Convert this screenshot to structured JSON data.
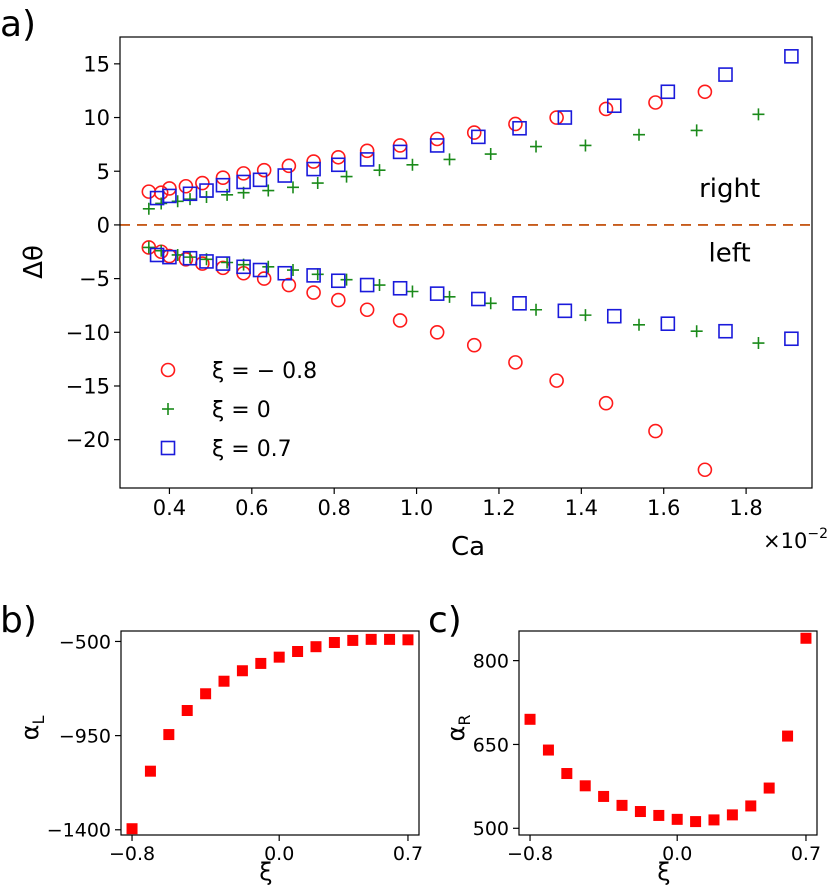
{
  "chart_data": [
    {
      "panel_label": "a)",
      "type": "scatter",
      "title": "",
      "xlabel": "Ca",
      "ylabel": "Δθ",
      "x_multiplier": "×10−2",
      "xlim": [
        0.28,
        1.96
      ],
      "ylim": [
        -24.5,
        17.5
      ],
      "xticks": [
        0.4,
        0.6,
        0.8,
        1.0,
        1.2,
        1.4,
        1.6,
        1.8
      ],
      "xtick_labels": [
        "0.4",
        "0.6",
        "0.8",
        "1.0",
        "1.2",
        "1.4",
        "1.6",
        "1.8"
      ],
      "yticks": [
        15,
        10,
        5,
        0,
        -5,
        -10,
        -15,
        -20
      ],
      "ytick_labels": [
        "15",
        "10",
        "5",
        "0",
        "−5",
        "−10",
        "−15",
        "−20"
      ],
      "annotations": [
        {
          "text": "right",
          "x": 1.76,
          "y": 2.6
        },
        {
          "text": "left",
          "x": 1.76,
          "y": -3.4
        }
      ],
      "reference_line": {
        "y": 0,
        "style": "dashed",
        "color": "#c65b1b"
      },
      "legend_position": "lower-left",
      "series": [
        {
          "name": "ξ = − 0.8",
          "marker": "circle",
          "color": "#ff1a1a",
          "right": {
            "x": [
              0.35,
              0.38,
              0.4,
              0.44,
              0.48,
              0.53,
              0.58,
              0.63,
              0.69,
              0.75,
              0.81,
              0.88,
              0.96,
              1.05,
              1.14,
              1.24,
              1.34,
              1.46,
              1.58,
              1.7
            ],
            "y": [
              3.1,
              3.0,
              3.4,
              3.6,
              3.9,
              4.4,
              4.8,
              5.1,
              5.5,
              5.9,
              6.3,
              6.9,
              7.4,
              8.0,
              8.6,
              9.4,
              10.0,
              10.8,
              11.4,
              12.4
            ]
          },
          "left": {
            "x": [
              0.35,
              0.38,
              0.4,
              0.44,
              0.48,
              0.53,
              0.58,
              0.63,
              0.69,
              0.75,
              0.81,
              0.88,
              0.96,
              1.05,
              1.14,
              1.24,
              1.34,
              1.46,
              1.58,
              1.7
            ],
            "y": [
              -2.1,
              -2.5,
              -2.9,
              -3.2,
              -3.6,
              -4.0,
              -4.5,
              -5.0,
              -5.6,
              -6.3,
              -7.0,
              -7.9,
              -8.9,
              -10.0,
              -11.2,
              -12.8,
              -14.5,
              -16.6,
              -19.2,
              -22.8
            ]
          }
        },
        {
          "name": "ξ = 0",
          "marker": "plus",
          "color": "#1a8a1a",
          "right": {
            "x": [
              0.35,
              0.38,
              0.42,
              0.45,
              0.49,
              0.54,
              0.58,
              0.64,
              0.7,
              0.76,
              0.83,
              0.91,
              0.99,
              1.08,
              1.18,
              1.29,
              1.41,
              1.54,
              1.68,
              1.83
            ],
            "y": [
              1.5,
              2.0,
              2.2,
              2.4,
              2.6,
              2.8,
              3.0,
              3.2,
              3.5,
              3.9,
              4.5,
              5.1,
              5.6,
              6.1,
              6.6,
              7.3,
              7.4,
              8.4,
              8.8,
              10.3
            ]
          },
          "left": {
            "x": [
              0.35,
              0.38,
              0.42,
              0.45,
              0.49,
              0.54,
              0.58,
              0.64,
              0.7,
              0.76,
              0.83,
              0.91,
              0.99,
              1.08,
              1.18,
              1.29,
              1.41,
              1.54,
              1.68,
              1.83
            ],
            "y": [
              -2.1,
              -2.4,
              -2.8,
              -3.0,
              -3.2,
              -3.5,
              -3.7,
              -3.9,
              -4.2,
              -4.6,
              -5.1,
              -5.6,
              -6.2,
              -6.7,
              -7.3,
              -7.9,
              -8.4,
              -9.3,
              -9.9,
              -11.0
            ]
          }
        },
        {
          "name": "ξ = 0.7",
          "marker": "square",
          "color": "#1a1adb",
          "right": {
            "x": [
              0.37,
              0.4,
              0.45,
              0.49,
              0.53,
              0.58,
              0.62,
              0.68,
              0.75,
              0.81,
              0.88,
              0.96,
              1.05,
              1.15,
              1.25,
              1.36,
              1.48,
              1.61,
              1.75,
              1.91
            ],
            "y": [
              2.5,
              2.7,
              2.9,
              3.2,
              3.7,
              4.0,
              4.2,
              4.6,
              5.2,
              5.6,
              6.1,
              6.8,
              7.4,
              8.2,
              9.0,
              10.0,
              11.1,
              12.4,
              14.0,
              15.7
            ]
          },
          "left": {
            "x": [
              0.37,
              0.4,
              0.45,
              0.49,
              0.53,
              0.58,
              0.62,
              0.68,
              0.75,
              0.81,
              0.88,
              0.96,
              1.05,
              1.15,
              1.25,
              1.36,
              1.48,
              1.61,
              1.75,
              1.91
            ],
            "y": [
              -2.8,
              -3.0,
              -3.1,
              -3.4,
              -3.6,
              -3.9,
              -4.2,
              -4.5,
              -4.7,
              -5.2,
              -5.6,
              -5.9,
              -6.4,
              -6.9,
              -7.3,
              -8.0,
              -8.5,
              -9.2,
              -9.9,
              -10.6
            ]
          }
        }
      ]
    },
    {
      "panel_label": "b)",
      "type": "scatter",
      "xlabel": "ξ",
      "ylabel": "αL",
      "ylabel_main": "α",
      "ylabel_sub": "L",
      "xlim": [
        -0.86,
        0.76
      ],
      "ylim": [
        -1425,
        -450
      ],
      "xticks": [
        -0.8,
        0.0,
        0.7
      ],
      "xtick_labels": [
        "−0.8",
        "0.0",
        "0.7"
      ],
      "yticks": [
        -500,
        -950,
        -1400
      ],
      "ytick_labels": [
        "−500",
        "−950",
        "−1400"
      ],
      "marker": "square",
      "color": "#ff0000",
      "x": [
        -0.8,
        -0.7,
        -0.6,
        -0.5,
        -0.4,
        -0.3,
        -0.2,
        -0.1,
        0.0,
        0.1,
        0.2,
        0.3,
        0.4,
        0.5,
        0.6,
        0.7
      ],
      "y": [
        -1395,
        -1120,
        -945,
        -830,
        -750,
        -690,
        -640,
        -605,
        -575,
        -548,
        -525,
        -505,
        -495,
        -490,
        -490,
        -492
      ]
    },
    {
      "panel_label": "c)",
      "type": "scatter",
      "xlabel": "ξ",
      "ylabel": "αR",
      "ylabel_main": "α",
      "ylabel_sub": "R",
      "xlim": [
        -0.86,
        0.76
      ],
      "ylim": [
        488,
        853
      ],
      "xticks": [
        -0.8,
        0.0,
        0.7
      ],
      "xtick_labels": [
        "−0.8",
        "0.0",
        "0.7"
      ],
      "yticks": [
        800,
        650,
        500
      ],
      "ytick_labels": [
        "800",
        "650",
        "500"
      ],
      "marker": "square",
      "color": "#ff0000",
      "x": [
        -0.8,
        -0.7,
        -0.6,
        -0.5,
        -0.4,
        -0.3,
        -0.2,
        -0.1,
        0.0,
        0.1,
        0.2,
        0.3,
        0.4,
        0.5,
        0.6,
        0.7
      ],
      "y": [
        695,
        640,
        598,
        576,
        557,
        541,
        530,
        523,
        516,
        512,
        515,
        524,
        540,
        572,
        665,
        840
      ]
    }
  ]
}
